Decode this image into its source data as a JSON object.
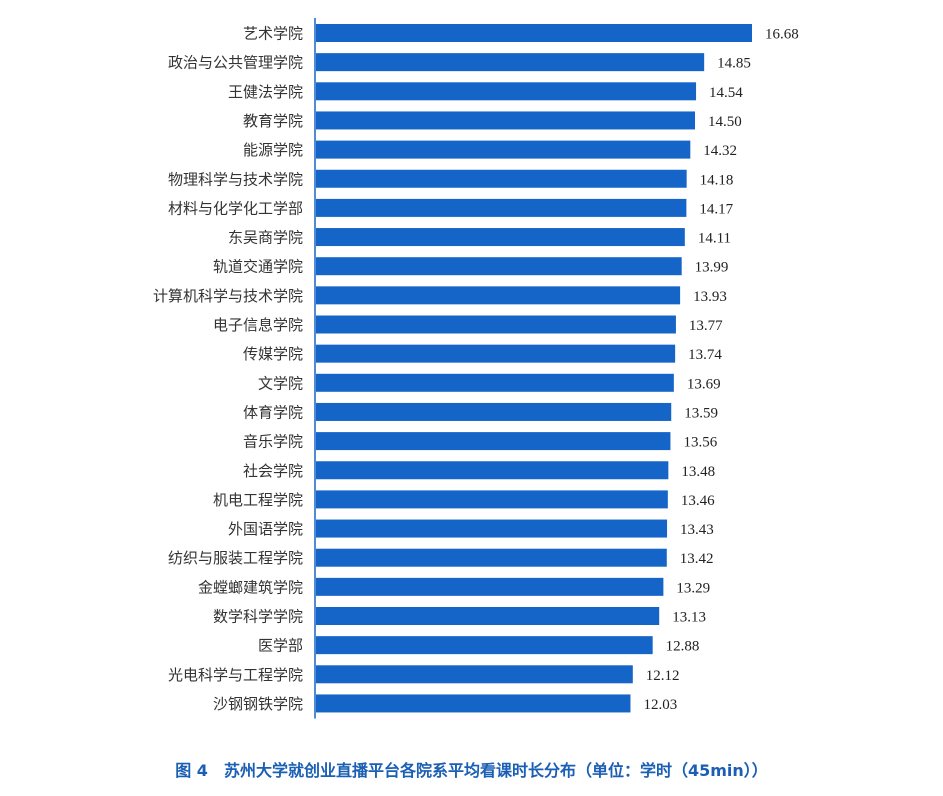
{
  "caption": "图 4　苏州大学就创业直播平台各院系平均看课时长分布（单位：学时（45min））",
  "colors": {
    "bar": "#1565c8",
    "axis": "#1565c8",
    "caption": "#1a5fb4"
  },
  "chart_data": {
    "type": "bar",
    "orientation": "horizontal",
    "title": "图 4　苏州大学就创业直播平台各院系平均看课时长分布（单位：学时（45min））",
    "unit": "学时（45min）",
    "grid": false,
    "legend": "none",
    "xlim": [
      0,
      16.68
    ],
    "categories": [
      "艺术学院",
      "政治与公共管理学院",
      "王健法学院",
      "教育学院",
      "能源学院",
      "物理科学与技术学院",
      "材料与化学化工学部",
      "东吴商学院",
      "轨道交通学院",
      "计算机科学与技术学院",
      "电子信息学院",
      "传媒学院",
      "文学院",
      "体育学院",
      "音乐学院",
      "社会学院",
      "机电工程学院",
      "外国语学院",
      "纺织与服装工程学院",
      "金螳螂建筑学院",
      "数学科学学院",
      "医学部",
      "光电科学与工程学院",
      "沙钢钢铁学院"
    ],
    "values": [
      16.68,
      14.85,
      14.54,
      14.5,
      14.32,
      14.18,
      14.17,
      14.11,
      13.99,
      13.93,
      13.77,
      13.74,
      13.69,
      13.59,
      13.56,
      13.48,
      13.46,
      13.43,
      13.42,
      13.29,
      13.13,
      12.88,
      12.12,
      12.03
    ],
    "value_labels": [
      "16.68",
      "14.85",
      "14.54",
      "14.50",
      "14.32",
      "14.18",
      "14.17",
      "14.11",
      "13.99",
      "13.93",
      "13.77",
      "13.74",
      "13.69",
      "13.59",
      "13.56",
      "13.48",
      "13.46",
      "13.43",
      "13.42",
      "13.29",
      "13.13",
      "12.88",
      "12.12",
      "12.03"
    ]
  }
}
